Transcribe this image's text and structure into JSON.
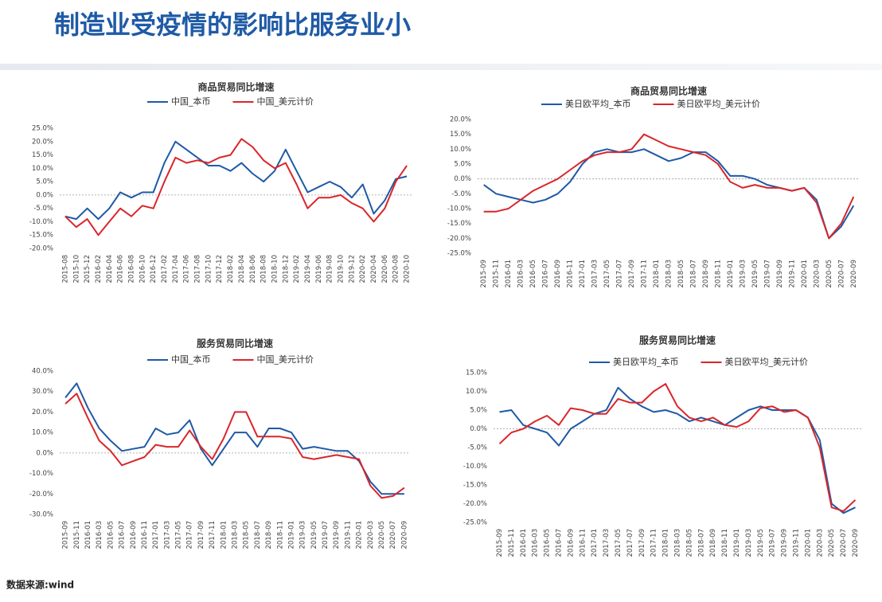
{
  "header": {
    "title": "制造业受疫情的影响比服务业小"
  },
  "footer": {
    "source": "数据来源:wind"
  },
  "chart_data": [
    {
      "type": "line",
      "title": "商品贸易同比增速",
      "categories": [
        "2015-08",
        "2015-10",
        "2015-12",
        "2016-02",
        "2016-04",
        "2016-06",
        "2016-08",
        "2016-10",
        "2016-12",
        "2017-02",
        "2017-04",
        "2017-06",
        "2017-08",
        "2017-10",
        "2017-12",
        "2018-02",
        "2018-04",
        "2018-06",
        "2018-08",
        "2018-10",
        "2018-12",
        "2019-02",
        "2019-04",
        "2019-06",
        "2019-08",
        "2019-10",
        "2019-12",
        "2020-02",
        "2020-04",
        "2020-06",
        "2020-08",
        "2020-10"
      ],
      "series": [
        {
          "name": "中国_本币",
          "color": "#1f5aa6",
          "values": [
            -8,
            -9,
            -5,
            -9,
            -5,
            1,
            -1,
            1,
            1,
            12,
            20,
            17,
            14,
            11,
            11,
            9,
            12,
            8,
            5,
            9,
            17,
            9,
            1,
            3,
            5,
            3,
            -1,
            4,
            -7,
            -2,
            6,
            7
          ]
        },
        {
          "name": "中国_美元计价",
          "color": "#d9262b",
          "values": [
            -8,
            -12,
            -9,
            -15,
            -10,
            -5,
            -8,
            -4,
            -5,
            5,
            14,
            12,
            13,
            12,
            14,
            15,
            21,
            18,
            13,
            10,
            12,
            4,
            -5,
            -1,
            -1,
            0,
            -3,
            -5,
            -10,
            -5,
            5,
            11
          ]
        }
      ],
      "ylim": [
        -20,
        25
      ],
      "yticks": [
        {
          "value": -20,
          "label": "-20.0%"
        },
        {
          "value": -15,
          "label": "-15.0%"
        },
        {
          "value": -10,
          "label": "-10.0%"
        },
        {
          "value": -5,
          "label": "-5.0%"
        },
        {
          "value": 0,
          "label": "0.0%"
        },
        {
          "value": 5,
          "label": "5.0%"
        },
        {
          "value": 10,
          "label": "10.0%"
        },
        {
          "value": 15,
          "label": "15.0%"
        },
        {
          "value": 20,
          "label": "20.0%"
        },
        {
          "value": 25,
          "label": "25.0%"
        }
      ]
    },
    {
      "type": "line",
      "title": "商品贸易同比增速",
      "categories": [
        "2015-09",
        "2015-11",
        "2016-01",
        "2016-03",
        "2016-05",
        "2016-07",
        "2016-09",
        "2016-11",
        "2017-01",
        "2017-03",
        "2017-05",
        "2017-07",
        "2017-09",
        "2017-11",
        "2018-01",
        "2018-03",
        "2018-05",
        "2018-07",
        "2018-09",
        "2018-11",
        "2019-01",
        "2019-03",
        "2019-05",
        "2019-07",
        "2019-09",
        "2019-11",
        "2020-01",
        "2020-03",
        "2020-05",
        "2020-07",
        "2020-09"
      ],
      "series": [
        {
          "name": "美日欧平均_本币",
          "color": "#1f5aa6",
          "values": [
            -2,
            -5,
            -6,
            -7,
            -8,
            -7,
            -5,
            -1,
            5,
            9,
            10,
            9,
            9,
            10,
            8,
            6,
            7,
            9,
            9,
            6,
            1,
            1,
            0,
            -2,
            -3,
            -4,
            -3,
            -7,
            -20,
            -16,
            -9
          ]
        },
        {
          "name": "美日欧平均_美元计价",
          "color": "#d9262b",
          "values": [
            -11,
            -11,
            -10,
            -7,
            -4,
            -2,
            0,
            3,
            6,
            8,
            9,
            9,
            10,
            15,
            13,
            11,
            10,
            9,
            8,
            5,
            -1,
            -3,
            -2,
            -3,
            -3,
            -4,
            -3,
            -8,
            -20,
            -15,
            -6
          ]
        }
      ],
      "ylim": [
        -25,
        20
      ],
      "yticks": [
        {
          "value": -25,
          "label": "-25.0%"
        },
        {
          "value": -20,
          "label": "-20.0%"
        },
        {
          "value": -15,
          "label": "-15.0%"
        },
        {
          "value": -10,
          "label": "-10.0%"
        },
        {
          "value": -5,
          "label": "-5.0%"
        },
        {
          "value": 0,
          "label": "0.0%"
        },
        {
          "value": 5,
          "label": "5.0%"
        },
        {
          "value": 10,
          "label": "10.0%"
        },
        {
          "value": 15,
          "label": "15.0%"
        },
        {
          "value": 20,
          "label": "20.0%"
        }
      ]
    },
    {
      "type": "line",
      "title": "服务贸易同比增速",
      "categories": [
        "2015-09",
        "2015-11",
        "2016-01",
        "2016-03",
        "2016-05",
        "2016-07",
        "2016-09",
        "2016-11",
        "2017-01",
        "2017-03",
        "2017-05",
        "2017-07",
        "2017-09",
        "2017-11",
        "2018-01",
        "2018-03",
        "2018-05",
        "2018-07",
        "2018-09",
        "2018-11",
        "2019-01",
        "2019-03",
        "2019-05",
        "2019-07",
        "2019-09",
        "2019-11",
        "2020-01",
        "2020-03",
        "2020-05",
        "2020-07",
        "2020-09"
      ],
      "series": [
        {
          "name": "中国_本币",
          "color": "#1f5aa6",
          "values": [
            27,
            34,
            22,
            12,
            6,
            1,
            2,
            3,
            12,
            9,
            10,
            16,
            2,
            -6,
            2,
            10,
            10,
            3,
            12,
            12,
            10,
            2,
            3,
            2,
            1,
            1,
            -4,
            -14,
            -20,
            -20,
            -20
          ]
        },
        {
          "name": "中国_美元计价",
          "color": "#d9262b",
          "values": [
            24,
            29,
            17,
            6,
            1,
            -6,
            -4,
            -2,
            4,
            3,
            3,
            11,
            3,
            -3,
            7,
            20,
            20,
            8,
            8,
            8,
            7,
            -2,
            -3,
            -2,
            -1,
            -2,
            -3,
            -16,
            -22,
            -21,
            -17
          ]
        }
      ],
      "ylim": [
        -30,
        40
      ],
      "yticks": [
        {
          "value": -30,
          "label": "-30.0%"
        },
        {
          "value": -20,
          "label": "-20.0%"
        },
        {
          "value": -10,
          "label": "-10.0%"
        },
        {
          "value": 0,
          "label": "0.0%"
        },
        {
          "value": 10,
          "label": "10.0%"
        },
        {
          "value": 20,
          "label": "20.0%"
        },
        {
          "value": 30,
          "label": "30.0%"
        },
        {
          "value": 40,
          "label": "40.0%"
        }
      ]
    },
    {
      "type": "line",
      "title": "服务贸易同比增速",
      "categories": [
        "2015-09",
        "2015-11",
        "2016-01",
        "2016-03",
        "2016-05",
        "2016-07",
        "2016-09",
        "2016-11",
        "2017-01",
        "2017-03",
        "2017-05",
        "2017-07",
        "2017-09",
        "2017-11",
        "2018-01",
        "2018-03",
        "2018-05",
        "2018-07",
        "2018-09",
        "2018-11",
        "2019-01",
        "2019-03",
        "2019-05",
        "2019-07",
        "2019-09",
        "2019-11",
        "2020-01",
        "2020-03",
        "2020-05",
        "2020-07",
        "2020-09"
      ],
      "series": [
        {
          "name": "美日欧平均_本币",
          "color": "#1f5aa6",
          "values": [
            4.5,
            5,
            1,
            0,
            -1,
            -4.5,
            0,
            2,
            4,
            5,
            11,
            8,
            6,
            4.5,
            5,
            4,
            2,
            3,
            2,
            1,
            3,
            5,
            6,
            5,
            5,
            5,
            3,
            -3,
            -20,
            -22.5,
            -21
          ]
        },
        {
          "name": "美日欧平均_美元计价",
          "color": "#d9262b",
          "values": [
            -4,
            -1,
            0,
            2,
            3.5,
            1,
            5.5,
            5,
            4,
            4,
            8,
            7,
            7,
            10,
            12,
            6,
            3,
            2,
            3,
            1,
            0.5,
            2,
            5.5,
            6,
            4.5,
            5,
            3,
            -5,
            -21,
            -22,
            -19
          ]
        }
      ],
      "ylim": [
        -25,
        15
      ],
      "yticks": [
        {
          "value": -25,
          "label": "-25.0%"
        },
        {
          "value": -20,
          "label": "-20.0%"
        },
        {
          "value": -15,
          "label": "-15.0%"
        },
        {
          "value": -10,
          "label": "-10.0%"
        },
        {
          "value": -5,
          "label": "-5.0%"
        },
        {
          "value": 0,
          "label": "0.0%"
        },
        {
          "value": 5,
          "label": "5.0%"
        },
        {
          "value": 10,
          "label": "10.0%"
        },
        {
          "value": 15,
          "label": "15.0%"
        }
      ]
    }
  ]
}
